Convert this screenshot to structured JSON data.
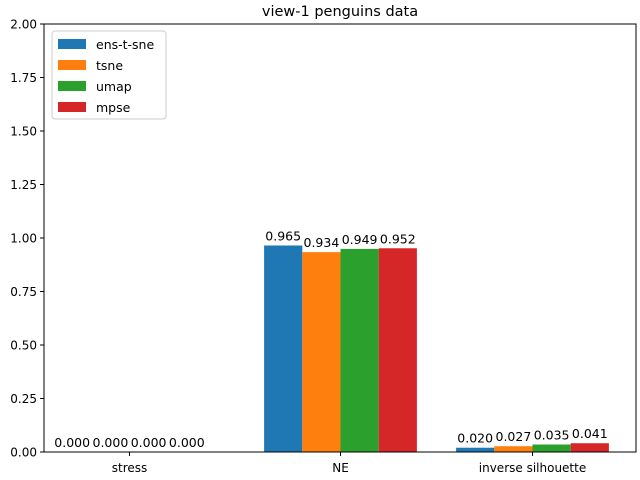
{
  "chart_data": {
    "type": "bar",
    "title": "view-1 penguins data",
    "xlabel": "",
    "ylabel": "",
    "categories": [
      "stress",
      "NE",
      "inverse silhouette"
    ],
    "series": [
      {
        "name": "ens-t-sne",
        "color": "#1f77b4",
        "values": [
          0.0,
          0.965,
          0.02
        ],
        "labels": [
          "0.000",
          "0.965",
          "0.020"
        ]
      },
      {
        "name": "tsne",
        "color": "#ff7f0e",
        "values": [
          0.0,
          0.934,
          0.027
        ],
        "labels": [
          "0.000",
          "0.934",
          "0.027"
        ]
      },
      {
        "name": "umap",
        "color": "#2ca02c",
        "values": [
          0.0,
          0.949,
          0.035
        ],
        "labels": [
          "0.000",
          "0.949",
          "0.035"
        ]
      },
      {
        "name": "mpse",
        "color": "#d62728",
        "values": [
          0.0,
          0.952,
          0.041
        ],
        "labels": [
          "0.000",
          "0.952",
          "0.041"
        ]
      }
    ],
    "ylim": [
      0,
      2.0
    ],
    "yticks": [
      "0.00",
      "0.25",
      "0.50",
      "0.75",
      "1.00",
      "1.25",
      "1.50",
      "1.75",
      "2.00"
    ],
    "legend_position": "top-left",
    "grid": false
  }
}
